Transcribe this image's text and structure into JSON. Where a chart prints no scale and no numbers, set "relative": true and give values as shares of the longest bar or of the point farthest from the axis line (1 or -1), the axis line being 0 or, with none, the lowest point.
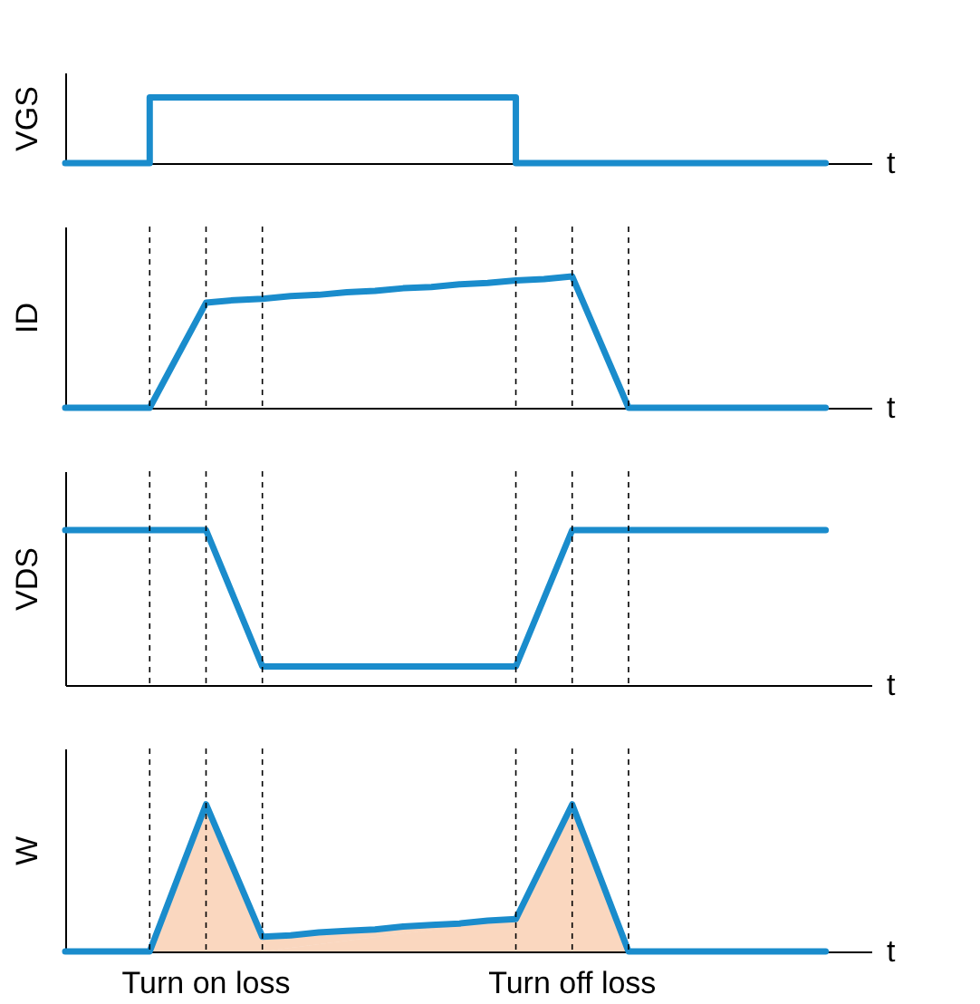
{
  "chart_data": [
    {
      "type": "step",
      "ylabel": "VGS",
      "xlabel": "t",
      "relative": true,
      "categories": [
        null,
        null,
        null,
        null,
        null,
        null,
        null,
        null,
        null,
        null,
        null,
        null,
        null,
        null,
        null,
        null,
        null,
        null,
        null,
        null,
        null,
        null,
        null,
        null,
        null,
        null,
        null,
        null
      ],
      "series": [
        {
          "color": "#1a8ccc",
          "values": [
            0,
            0,
            0,
            1,
            1,
            1,
            1,
            1,
            1,
            1,
            1,
            1,
            1,
            1,
            1,
            1,
            0,
            0,
            0,
            0,
            0,
            0,
            0,
            0,
            0,
            0,
            0,
            0
          ]
        }
      ]
    },
    {
      "type": "line",
      "ylabel": "ID",
      "xlabel": "t",
      "relative": true,
      "categories": [
        null,
        null,
        null,
        null,
        null,
        null,
        null,
        null,
        null,
        null,
        null,
        null,
        null,
        null,
        null,
        null,
        null,
        null,
        null,
        null,
        null,
        null,
        null,
        null,
        null,
        null,
        null,
        null
      ],
      "series": [
        {
          "color": "#1a8ccc",
          "values": [
            0,
            0,
            0,
            0,
            0.4,
            0.8,
            0.82,
            0.83,
            0.85,
            0.86,
            0.88,
            0.89,
            0.91,
            0.92,
            0.94,
            0.95,
            0.97,
            0.98,
            1,
            0.5,
            0,
            0,
            0,
            0,
            0,
            0,
            0,
            0
          ]
        }
      ],
      "grid": "x"
    },
    {
      "type": "line",
      "ylabel": "VDS",
      "xlabel": "t",
      "relative": true,
      "categories": [
        null,
        null,
        null,
        null,
        null,
        null,
        null,
        null,
        null,
        null,
        null,
        null,
        null,
        null,
        null,
        null,
        null,
        null,
        null,
        null,
        null,
        null,
        null,
        null,
        null,
        null,
        null,
        null
      ],
      "series": [
        {
          "color": "#1a8ccc",
          "values": [
            1,
            1,
            1,
            1,
            1,
            1,
            0.56,
            0.12,
            0.12,
            0.12,
            0.12,
            0.12,
            0.12,
            0.12,
            0.12,
            0.12,
            0.12,
            0.56,
            1,
            1,
            1,
            1,
            1,
            1,
            1,
            1,
            1,
            1
          ]
        }
      ],
      "grid": "x"
    },
    {
      "type": "line",
      "ylabel": "W",
      "xlabel": "t",
      "relative": true,
      "categories": [
        null,
        null,
        null,
        null,
        null,
        null,
        null,
        null,
        null,
        null,
        null,
        null,
        null,
        null,
        null,
        null,
        null,
        null,
        null,
        null,
        null,
        null,
        null,
        null,
        null,
        null,
        null,
        null
      ],
      "series": [
        {
          "type": "area",
          "color": "#f4a672",
          "values": [
            null,
            null,
            null,
            0,
            0.5,
            1,
            0.55,
            0.1,
            null,
            null,
            null,
            null,
            null,
            null,
            null,
            null,
            0.22,
            0.61,
            1,
            0.5,
            0,
            null,
            null,
            null,
            null,
            null,
            null,
            null
          ]
        },
        {
          "color": "#1a8ccc",
          "values": [
            0,
            0,
            0,
            0,
            0.5,
            1,
            0.55,
            0.1,
            0.11,
            0.13,
            0.14,
            0.15,
            0.17,
            0.18,
            0.19,
            0.21,
            0.22,
            0.61,
            1,
            0.5,
            0,
            0,
            0,
            0,
            0,
            0,
            0,
            0
          ]
        }
      ],
      "grid": "x",
      "annotations": [
        "Turn on loss",
        "Turn off loss"
      ]
    }
  ]
}
